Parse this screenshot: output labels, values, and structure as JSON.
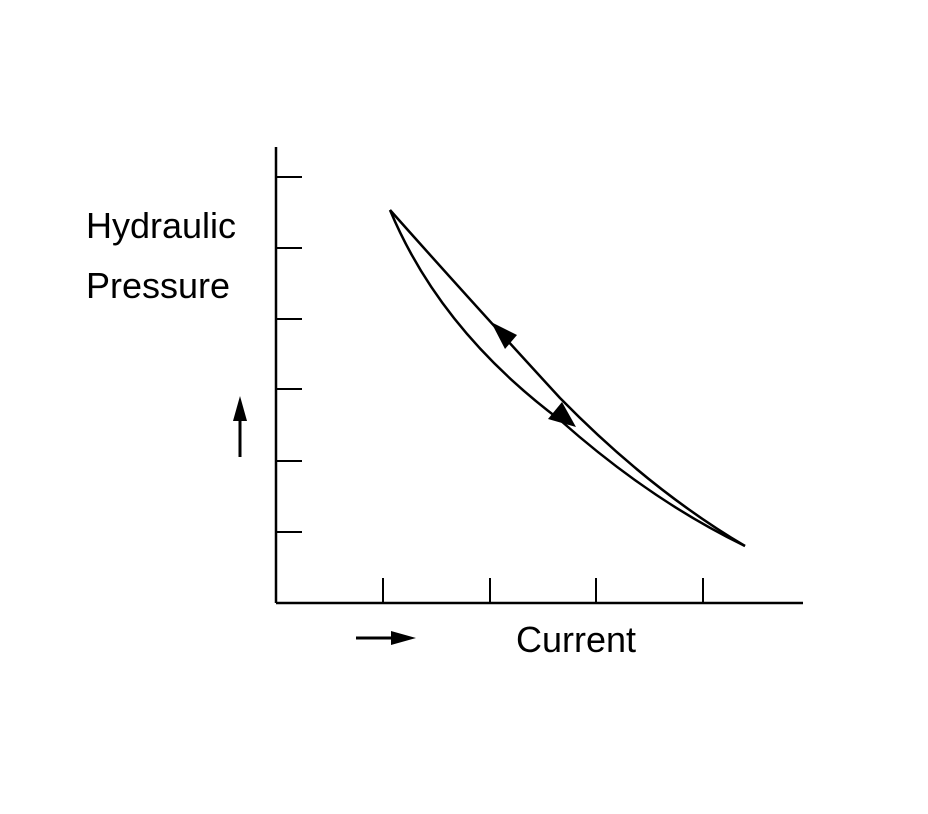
{
  "diagram": {
    "y_axis_label_line1": "Hydraulic",
    "y_axis_label_line2": "Pressure",
    "x_axis_label": "Current",
    "y_axis_tick_count": 6,
    "x_axis_tick_count": 4,
    "curves": [
      {
        "direction": "increasing current",
        "trend": "pressure decreases"
      },
      {
        "direction": "decreasing current",
        "trend": "pressure increases"
      }
    ]
  }
}
